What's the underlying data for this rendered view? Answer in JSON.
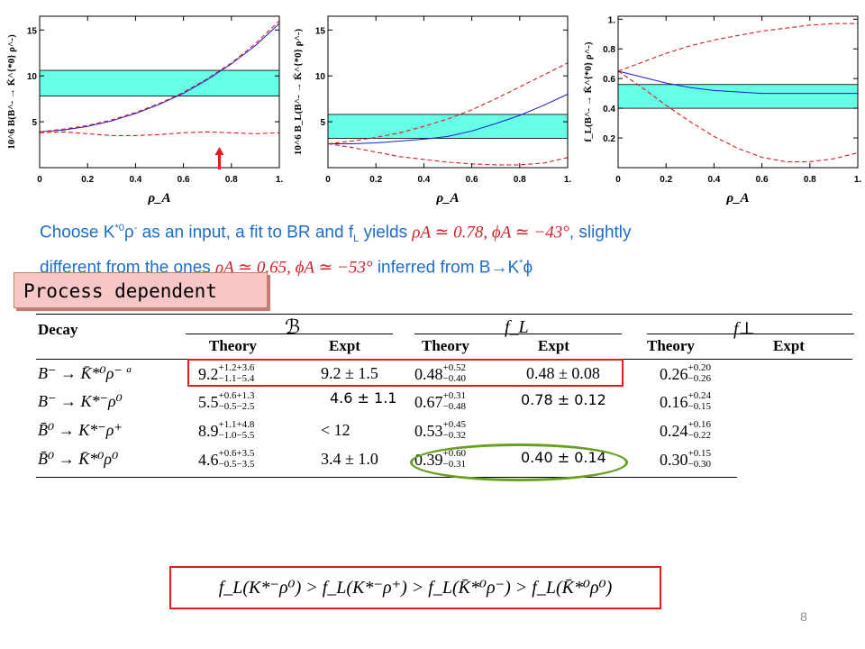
{
  "chart_data": [
    {
      "type": "line",
      "ylabel": "10^6 B(B^- → K̄^{*0} ρ^-)",
      "xlabel": "ρ_A",
      "xlim": [
        0,
        1
      ],
      "ylim": [
        0,
        16.5
      ],
      "xticks": [
        "0",
        "0.2",
        "0.4",
        "0.6",
        "0.8",
        "1."
      ],
      "yticks": [
        {
          "v": 5,
          "t": "5"
        },
        {
          "v": 10,
          "t": "10"
        },
        {
          "v": 15,
          "t": "15"
        }
      ],
      "band": [
        7.8,
        10.6
      ],
      "arrow_x": 0.75,
      "series": [
        {
          "style": "central",
          "x": [
            0,
            0.1,
            0.2,
            0.3,
            0.4,
            0.5,
            0.6,
            0.7,
            0.8,
            0.9,
            1.0
          ],
          "y": [
            3.9,
            4.1,
            4.5,
            5.1,
            5.9,
            6.9,
            8.1,
            9.6,
            11.3,
            13.3,
            15.7
          ]
        },
        {
          "style": "upper",
          "x": [
            0,
            0.1,
            0.2,
            0.3,
            0.4,
            0.5,
            0.6,
            0.7,
            0.8,
            0.9,
            1.0
          ],
          "y": [
            3.9,
            4.2,
            4.6,
            5.2,
            6.0,
            7.0,
            8.2,
            9.7,
            11.4,
            13.5,
            16.0
          ]
        },
        {
          "style": "lower",
          "x": [
            0,
            0.1,
            0.2,
            0.3,
            0.4,
            0.5,
            0.6,
            0.7,
            0.8,
            0.9,
            1.0
          ],
          "y": [
            3.8,
            3.9,
            3.7,
            3.5,
            3.5,
            3.6,
            3.8,
            3.9,
            3.8,
            3.7,
            3.8
          ]
        }
      ]
    },
    {
      "type": "line",
      "ylabel": "10^6 B_L(B^- → K̄^{*0} ρ^-)",
      "xlabel": "ρ_A",
      "xlim": [
        0,
        1
      ],
      "ylim": [
        0,
        16.5
      ],
      "xticks": [
        "0",
        "0.2",
        "0.4",
        "0.6",
        "0.8",
        "1."
      ],
      "yticks": [
        {
          "v": 5,
          "t": "5"
        },
        {
          "v": 10,
          "t": "10"
        },
        {
          "v": 15,
          "t": "15"
        }
      ],
      "band": [
        3.2,
        5.8
      ],
      "series": [
        {
          "style": "central",
          "x": [
            0,
            0.1,
            0.2,
            0.3,
            0.4,
            0.5,
            0.6,
            0.7,
            0.8,
            0.9,
            1.0
          ],
          "y": [
            2.6,
            2.6,
            2.7,
            2.9,
            3.1,
            3.4,
            4.0,
            4.8,
            5.7,
            6.8,
            8.0
          ]
        },
        {
          "style": "upper",
          "x": [
            0,
            0.1,
            0.2,
            0.3,
            0.4,
            0.5,
            0.6,
            0.7,
            0.8,
            0.9,
            1.0
          ],
          "y": [
            2.6,
            2.9,
            3.3,
            3.8,
            4.5,
            5.3,
            6.3,
            7.5,
            8.8,
            10.1,
            11.4
          ]
        },
        {
          "style": "lower",
          "x": [
            0,
            0.1,
            0.2,
            0.3,
            0.4,
            0.5,
            0.6,
            0.7,
            0.8,
            0.9,
            1.0
          ],
          "y": [
            2.6,
            2.2,
            1.7,
            1.2,
            0.9,
            0.6,
            0.4,
            0.3,
            0.3,
            0.5,
            1.1
          ]
        }
      ]
    },
    {
      "type": "line",
      "ylabel": "f_L(B^- → K̄^{*0} ρ^-)",
      "xlabel": "ρ_A",
      "xlim": [
        0,
        1
      ],
      "ylim": [
        0,
        1.02
      ],
      "xticks": [
        "0",
        "0.2",
        "0.4",
        "0.6",
        "0.8",
        "1."
      ],
      "yticks": [
        {
          "v": 0.2,
          "t": "0.2"
        },
        {
          "v": 0.4,
          "t": "0.4"
        },
        {
          "v": 0.6,
          "t": "0.6"
        },
        {
          "v": 0.8,
          "t": "0.8"
        },
        {
          "v": 1.0,
          "t": "1."
        }
      ],
      "band": [
        0.4,
        0.56
      ],
      "series": [
        {
          "style": "central",
          "x": [
            0,
            0.1,
            0.2,
            0.3,
            0.4,
            0.5,
            0.6,
            0.7,
            0.8,
            0.9,
            1.0
          ],
          "y": [
            0.65,
            0.61,
            0.57,
            0.54,
            0.52,
            0.51,
            0.5,
            0.5,
            0.5,
            0.5,
            0.5
          ]
        },
        {
          "style": "upper",
          "x": [
            0,
            0.1,
            0.2,
            0.3,
            0.4,
            0.5,
            0.6,
            0.7,
            0.8,
            0.9,
            1.0
          ],
          "y": [
            0.65,
            0.71,
            0.77,
            0.82,
            0.86,
            0.89,
            0.92,
            0.94,
            0.96,
            0.97,
            0.97
          ]
        },
        {
          "style": "lower",
          "x": [
            0,
            0.1,
            0.2,
            0.3,
            0.4,
            0.5,
            0.6,
            0.7,
            0.8,
            0.9,
            1.0
          ],
          "y": [
            0.65,
            0.54,
            0.42,
            0.31,
            0.21,
            0.13,
            0.07,
            0.04,
            0.04,
            0.06,
            0.1
          ]
        }
      ]
    }
  ],
  "colors": {
    "band": "#66ffe6",
    "central": "#1b1bd6",
    "bound": "#d42020",
    "arrow": "#e21b1b",
    "text_blue": "#1f6ec8",
    "math_red": "#d0202a",
    "box_red": "#e21b1b",
    "ellipse_green": "#6aa022"
  },
  "description": {
    "line1_a": "Choose K",
    "line1_sup": "*0",
    "line1_b": "ρ",
    "line1_sup2": "-",
    "line1_c": " as an input, a fit to BR and f",
    "line1_sub": "L",
    "line1_d": " yields ",
    "line1_math": "ρA ≃ 0.78,  ϕA ≃ −43°",
    "line1_e": ", slightly",
    "line2_a": "different from the ones ",
    "line2_math": "ρA ≃ 0.65, ϕA ≃ −53°",
    "line2_b": " inferred from B→K",
    "line2_sup": "*",
    "line2_c": "ϕ"
  },
  "banner": "Process dependent",
  "table": {
    "headers": {
      "decay": "Decay",
      "B": "ℬ",
      "fL": "f_L",
      "fperp": "f⊥",
      "theory": "Theory",
      "expt": "Expt"
    },
    "rows": [
      {
        "decay": "B⁻ → K̄*⁰ρ⁻ ",
        "decay_sup": "a",
        "B_th": "9.2",
        "B_th_up": "+1.2+3.6",
        "B_th_dn": "−1.1−5.4",
        "B_ex": "9.2 ± 1.5",
        "fL_th": "0.48",
        "fL_th_up": "+0.52",
        "fL_th_dn": "−0.40",
        "fL_ex": "0.48 ± 0.08",
        "fp_th": "0.26",
        "fp_th_up": "+0.20",
        "fp_th_dn": "−0.26"
      },
      {
        "decay": "B⁻ → K*⁻ρ⁰",
        "decay_sup": "",
        "B_th": "5.5",
        "B_th_up": "+0.6+1.3",
        "B_th_dn": "−0.5−2.5",
        "B_ex": "4.6 ± 1.1",
        "fL_th": "0.67",
        "fL_th_up": "+0.31",
        "fL_th_dn": "−0.48",
        "fL_ex": "0.78 ± 0.12",
        "fp_th": "0.16",
        "fp_th_up": "+0.24",
        "fp_th_dn": "−0.15"
      },
      {
        "decay": "B̄⁰ → K*⁻ρ⁺",
        "decay_sup": "",
        "B_th": "8.9",
        "B_th_up": "+1.1+4.8",
        "B_th_dn": "−1.0−5.5",
        "B_ex": "< 12",
        "fL_th": "0.53",
        "fL_th_up": "+0.45",
        "fL_th_dn": "−0.32",
        "fL_ex": "",
        "fp_th": "0.24",
        "fp_th_up": "+0.16",
        "fp_th_dn": "−0.22"
      },
      {
        "decay": "B̄⁰ → K̄*⁰ρ⁰",
        "decay_sup": "",
        "B_th": "4.6",
        "B_th_up": "+0.6+3.5",
        "B_th_dn": "−0.5−3.5",
        "B_ex": "3.4 ± 1.0",
        "fL_th": "0.39",
        "fL_th_up": "+0.60",
        "fL_th_dn": "−0.31",
        "fL_ex": "0.40 ± 0.14",
        "fp_th": "0.30",
        "fp_th_up": "+0.15",
        "fp_th_dn": "−0.30"
      }
    ]
  },
  "formula": "f_L(K*⁻ρ⁰) > f_L(K*⁻ρ⁺) > f_L(K̄*⁰ρ⁻) > f_L(K̄*⁰ρ⁰)",
  "page_number": "8"
}
